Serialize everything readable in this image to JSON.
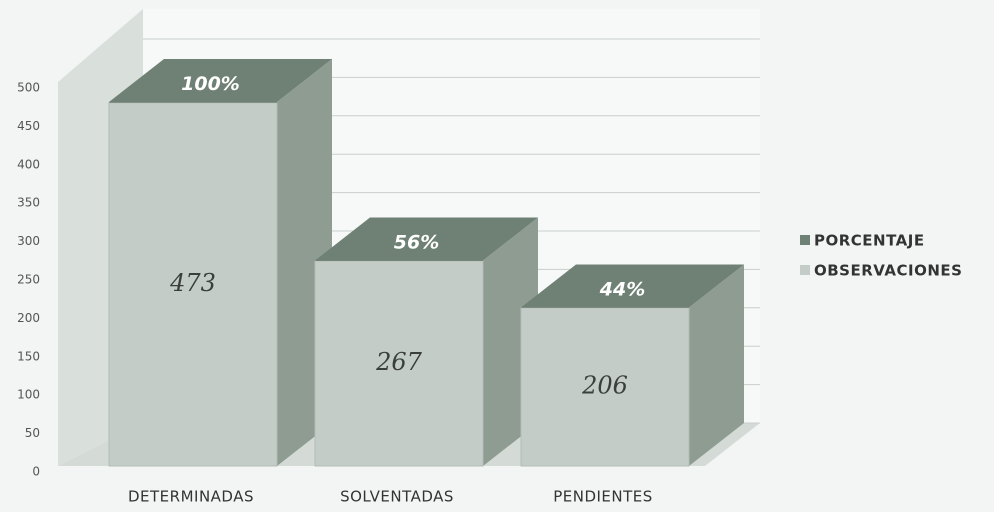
{
  "chart_data": {
    "type": "bar3d_stacked",
    "categories": [
      "DETERMINADAS",
      "SOLVENTADAS",
      "PENDIENTES"
    ],
    "series": [
      {
        "name": "PORCENTAJE",
        "color": "#6f8074",
        "values": [
          1,
          0.56,
          0.44
        ],
        "value_labels": [
          "100%",
          "56%",
          "44%"
        ]
      },
      {
        "name": "OBSERVACIONES",
        "color": "#c3ccc6",
        "values": [
          473,
          267,
          206
        ]
      }
    ],
    "ylim": [
      0,
      500
    ],
    "yticks": [
      0,
      50,
      100,
      150,
      200,
      250,
      300,
      350,
      400,
      450,
      500
    ],
    "grid": true,
    "legend": "right"
  }
}
